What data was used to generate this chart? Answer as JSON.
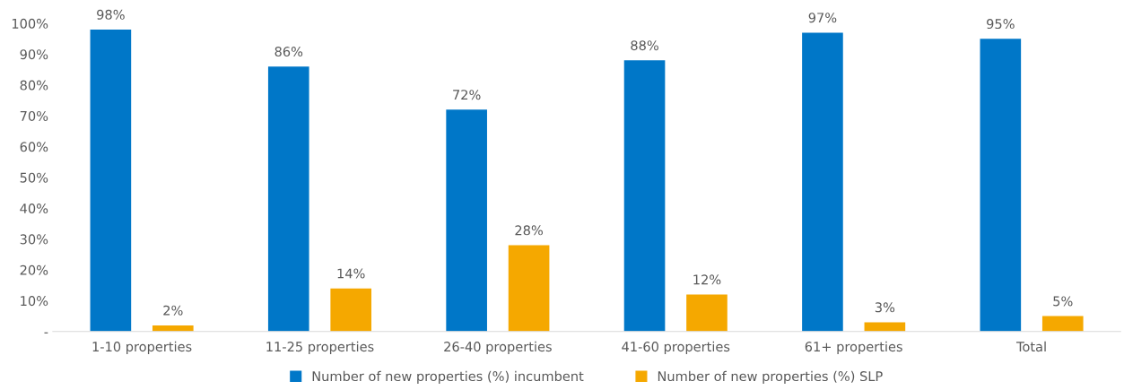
{
  "chart_data": {
    "type": "bar",
    "categories": [
      "1-10 properties",
      "11-25 properties",
      "26-40 properties",
      "41-60 properties",
      "61+ properties",
      "Total"
    ],
    "series": [
      {
        "name": "Number of new properties (%) incumbent",
        "color": "#0077c8",
        "values": [
          98,
          86,
          72,
          88,
          97,
          95
        ],
        "value_labels": [
          "98%",
          "86%",
          "72%",
          "88%",
          "97%",
          "95%"
        ]
      },
      {
        "name": "Number of new properties (%) SLP",
        "color": "#f5a800",
        "values": [
          2,
          14,
          28,
          12,
          3,
          5
        ],
        "value_labels": [
          "2%",
          "14%",
          "28%",
          "12%",
          "3%",
          "5%"
        ]
      }
    ],
    "ylim": [
      0,
      100
    ],
    "yticks": [
      {
        "value": 0,
        "label": "-"
      },
      {
        "value": 10,
        "label": "10%"
      },
      {
        "value": 20,
        "label": "20%"
      },
      {
        "value": 30,
        "label": "30%"
      },
      {
        "value": 40,
        "label": "40%"
      },
      {
        "value": 50,
        "label": "50%"
      },
      {
        "value": 60,
        "label": "60%"
      },
      {
        "value": 70,
        "label": "70%"
      },
      {
        "value": 80,
        "label": "80%"
      },
      {
        "value": 90,
        "label": "90%"
      },
      {
        "value": 100,
        "label": "100%"
      }
    ],
    "grid": false,
    "legend": "bottom"
  }
}
